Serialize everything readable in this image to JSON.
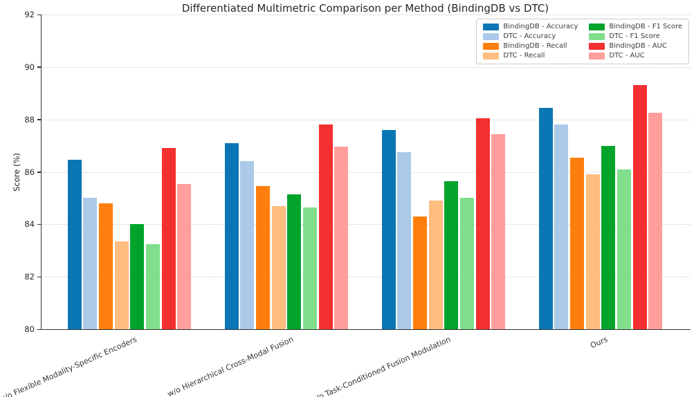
{
  "chart_data": {
    "type": "bar",
    "title": "Differentiated Multimetric Comparison per Method (BindingDB vs DTC)",
    "xlabel": "",
    "ylabel": "Score (%)",
    "ylim": [
      80,
      92
    ],
    "yticks": [
      80,
      82,
      84,
      86,
      88,
      90,
      92
    ],
    "grid": "horizontal-dotted",
    "legend_position": "upper right",
    "legend_columns": 2,
    "categories": [
      "w/o Flexible Modality-Specific Encoders",
      "w/o Hierarchical Cross-Modal Fusion",
      "w/o Task-Conditioned Fusion Modulation",
      "Ours"
    ],
    "series": [
      {
        "name": "BindingDB - Accuracy",
        "color": "#0a76b4",
        "values": [
          86.45,
          87.1,
          87.6,
          88.45
        ]
      },
      {
        "name": "DTC - Accuracy",
        "color": "#abc9e9",
        "values": [
          85.0,
          86.4,
          86.75,
          87.8
        ]
      },
      {
        "name": "BindingDB - Recall",
        "color": "#ff7f0e",
        "values": [
          84.8,
          85.45,
          84.3,
          86.55
        ]
      },
      {
        "name": "DTC - Recall",
        "color": "#ffbd80",
        "values": [
          83.35,
          84.7,
          84.9,
          85.9
        ]
      },
      {
        "name": "BindingDB - F1 Score",
        "color": "#02a32b",
        "values": [
          84.0,
          85.15,
          85.65,
          87.0
        ]
      },
      {
        "name": "DTC - F1 Score",
        "color": "#80de8c",
        "values": [
          83.25,
          84.65,
          85.0,
          86.1
        ]
      },
      {
        "name": "BindingDB - AUC",
        "color": "#f42f30",
        "values": [
          86.9,
          87.8,
          88.05,
          89.3
        ]
      },
      {
        "name": "DTC - AUC",
        "color": "#ff9e9b",
        "values": [
          85.55,
          86.95,
          87.45,
          88.25
        ]
      }
    ]
  }
}
